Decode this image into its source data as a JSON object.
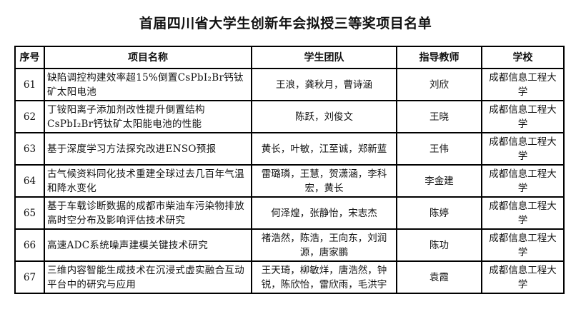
{
  "title": "首届四川省大学生创新年会拟授三等奖项目名单",
  "columns": [
    "序号",
    "项目名称",
    "学生团队",
    "指导教师",
    "学校"
  ],
  "rows": [
    {
      "no": "61",
      "project": "缺陷调控构建效率超15%倒置CsPbI₂Br钙钛矿太阳电池",
      "team": "王浪，龚秋月，曹诗涵",
      "advisor": "刘欣",
      "school": "成都信息工程大学"
    },
    {
      "no": "62",
      "project": "丁铵阳离子添加剂改性提升倒置结构CsPbI₂Br钙钛矿太阳能电池的性能",
      "team": "陈跃，刘俊文",
      "advisor": "王晓",
      "school": "成都信息工程大学"
    },
    {
      "no": "63",
      "project": "基于深度学习方法探究改进ENSO预报",
      "team": "黄长，叶敏，江至诚，郑新蓝",
      "advisor": "王伟",
      "school": "成都信息工程大学"
    },
    {
      "no": "64",
      "project": "古气候资料同化技术重建全球过去几百年气温和降水变化",
      "team": "雷璐璘，王慧，贺潇涵，李科宏，黄长",
      "advisor": "李金建",
      "school": "成都信息工程大学"
    },
    {
      "no": "65",
      "project": "基于车载诊断数据的成都市柴油车污染物排放高时空分布及影响评估技术研究",
      "team": "何泽煌，张静怡，宋志杰",
      "advisor": "陈婷",
      "school": "成都信息工程大学"
    },
    {
      "no": "66",
      "project": "高速ADC系统噪声建模关键技术研究",
      "team": "褚浩然，陈浩，王向东，刘润源，唐家鹏",
      "advisor": "陈功",
      "school": "成都信息工程大学"
    },
    {
      "no": "67",
      "project": "三维内容智能生成技术在沉浸式虚实融合互动平台中的研究与应用",
      "team": "王天琦，柳敏烊，唐浩然，钟锐，陈欣怡，雷欣雨，毛洪宇",
      "advisor": "袁霞",
      "school": "成都信息工程大学"
    }
  ]
}
